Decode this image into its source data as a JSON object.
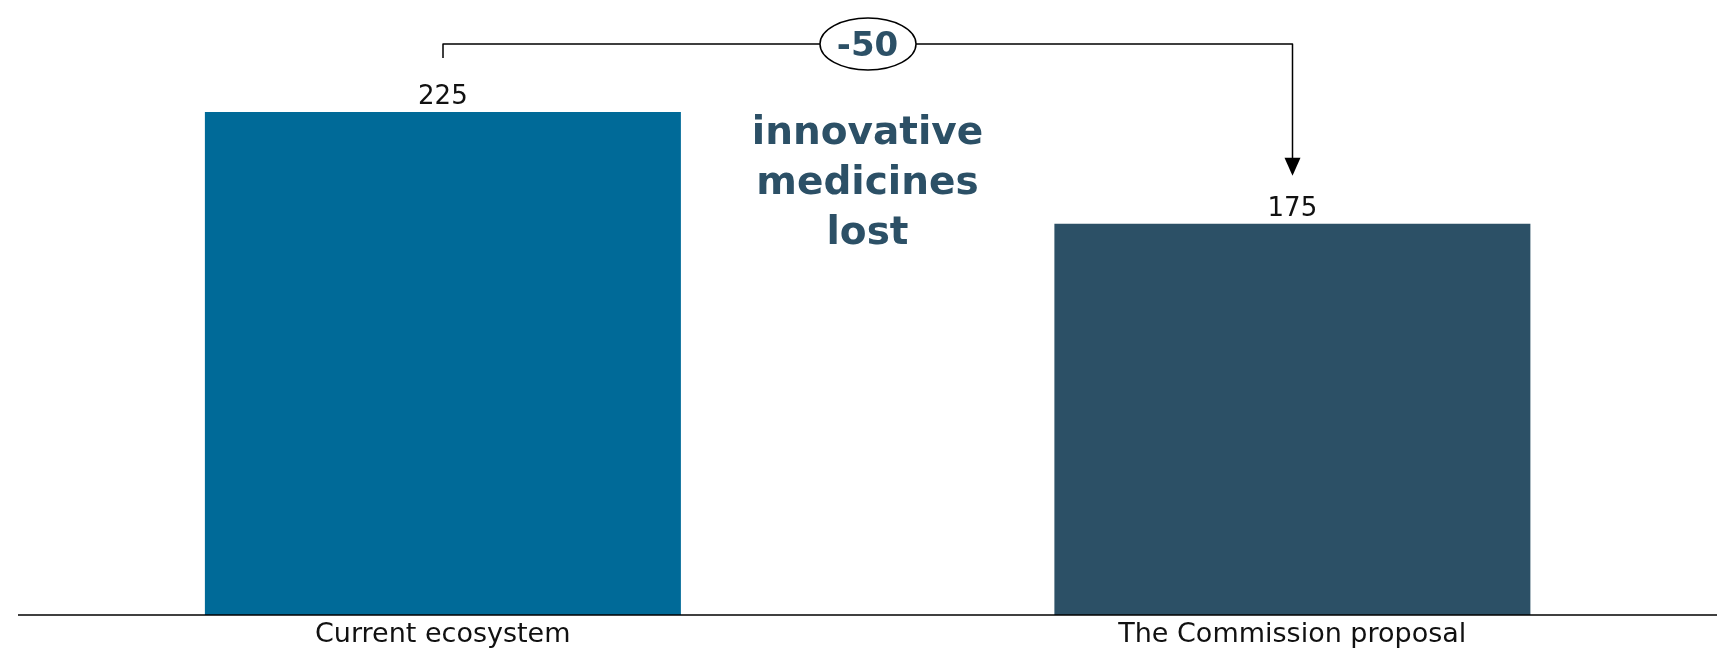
{
  "chart_data": {
    "type": "bar",
    "categories": [
      "Current ecosystem",
      "The Commission proposal"
    ],
    "values": [
      225,
      175
    ],
    "colors": [
      "#006a98",
      "#2c5066"
    ],
    "data_labels": true,
    "annotations": [
      "-50",
      "innovative medicines lost"
    ]
  }
}
